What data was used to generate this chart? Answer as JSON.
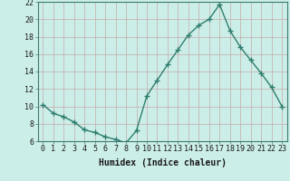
{
  "x": [
    0,
    1,
    2,
    3,
    4,
    5,
    6,
    7,
    8,
    9,
    10,
    11,
    12,
    13,
    14,
    15,
    16,
    17,
    18,
    19,
    20,
    21,
    22,
    23
  ],
  "y": [
    10.2,
    9.2,
    8.8,
    8.2,
    7.3,
    7.0,
    6.5,
    6.2,
    5.8,
    7.2,
    11.2,
    13.0,
    14.8,
    16.5,
    18.2,
    19.3,
    20.0,
    21.7,
    18.7,
    16.8,
    15.3,
    13.8,
    12.2,
    10.0
  ],
  "line_color": "#2e7d6e",
  "marker": "+",
  "marker_size": 4,
  "marker_linewidth": 1.0,
  "bg_color": "#cceee8",
  "grid_color": "#c4aaaa",
  "xlabel": "Humidex (Indice chaleur)",
  "ylim": [
    6,
    22
  ],
  "yticks": [
    6,
    8,
    10,
    12,
    14,
    16,
    18,
    20,
    22
  ],
  "xticks": [
    0,
    1,
    2,
    3,
    4,
    5,
    6,
    7,
    8,
    9,
    10,
    11,
    12,
    13,
    14,
    15,
    16,
    17,
    18,
    19,
    20,
    21,
    22,
    23
  ],
  "xlim": [
    -0.5,
    23.5
  ],
  "xlabel_fontsize": 7,
  "tick_fontsize": 6,
  "line_width": 1.0,
  "spine_color": "#3d7a70"
}
